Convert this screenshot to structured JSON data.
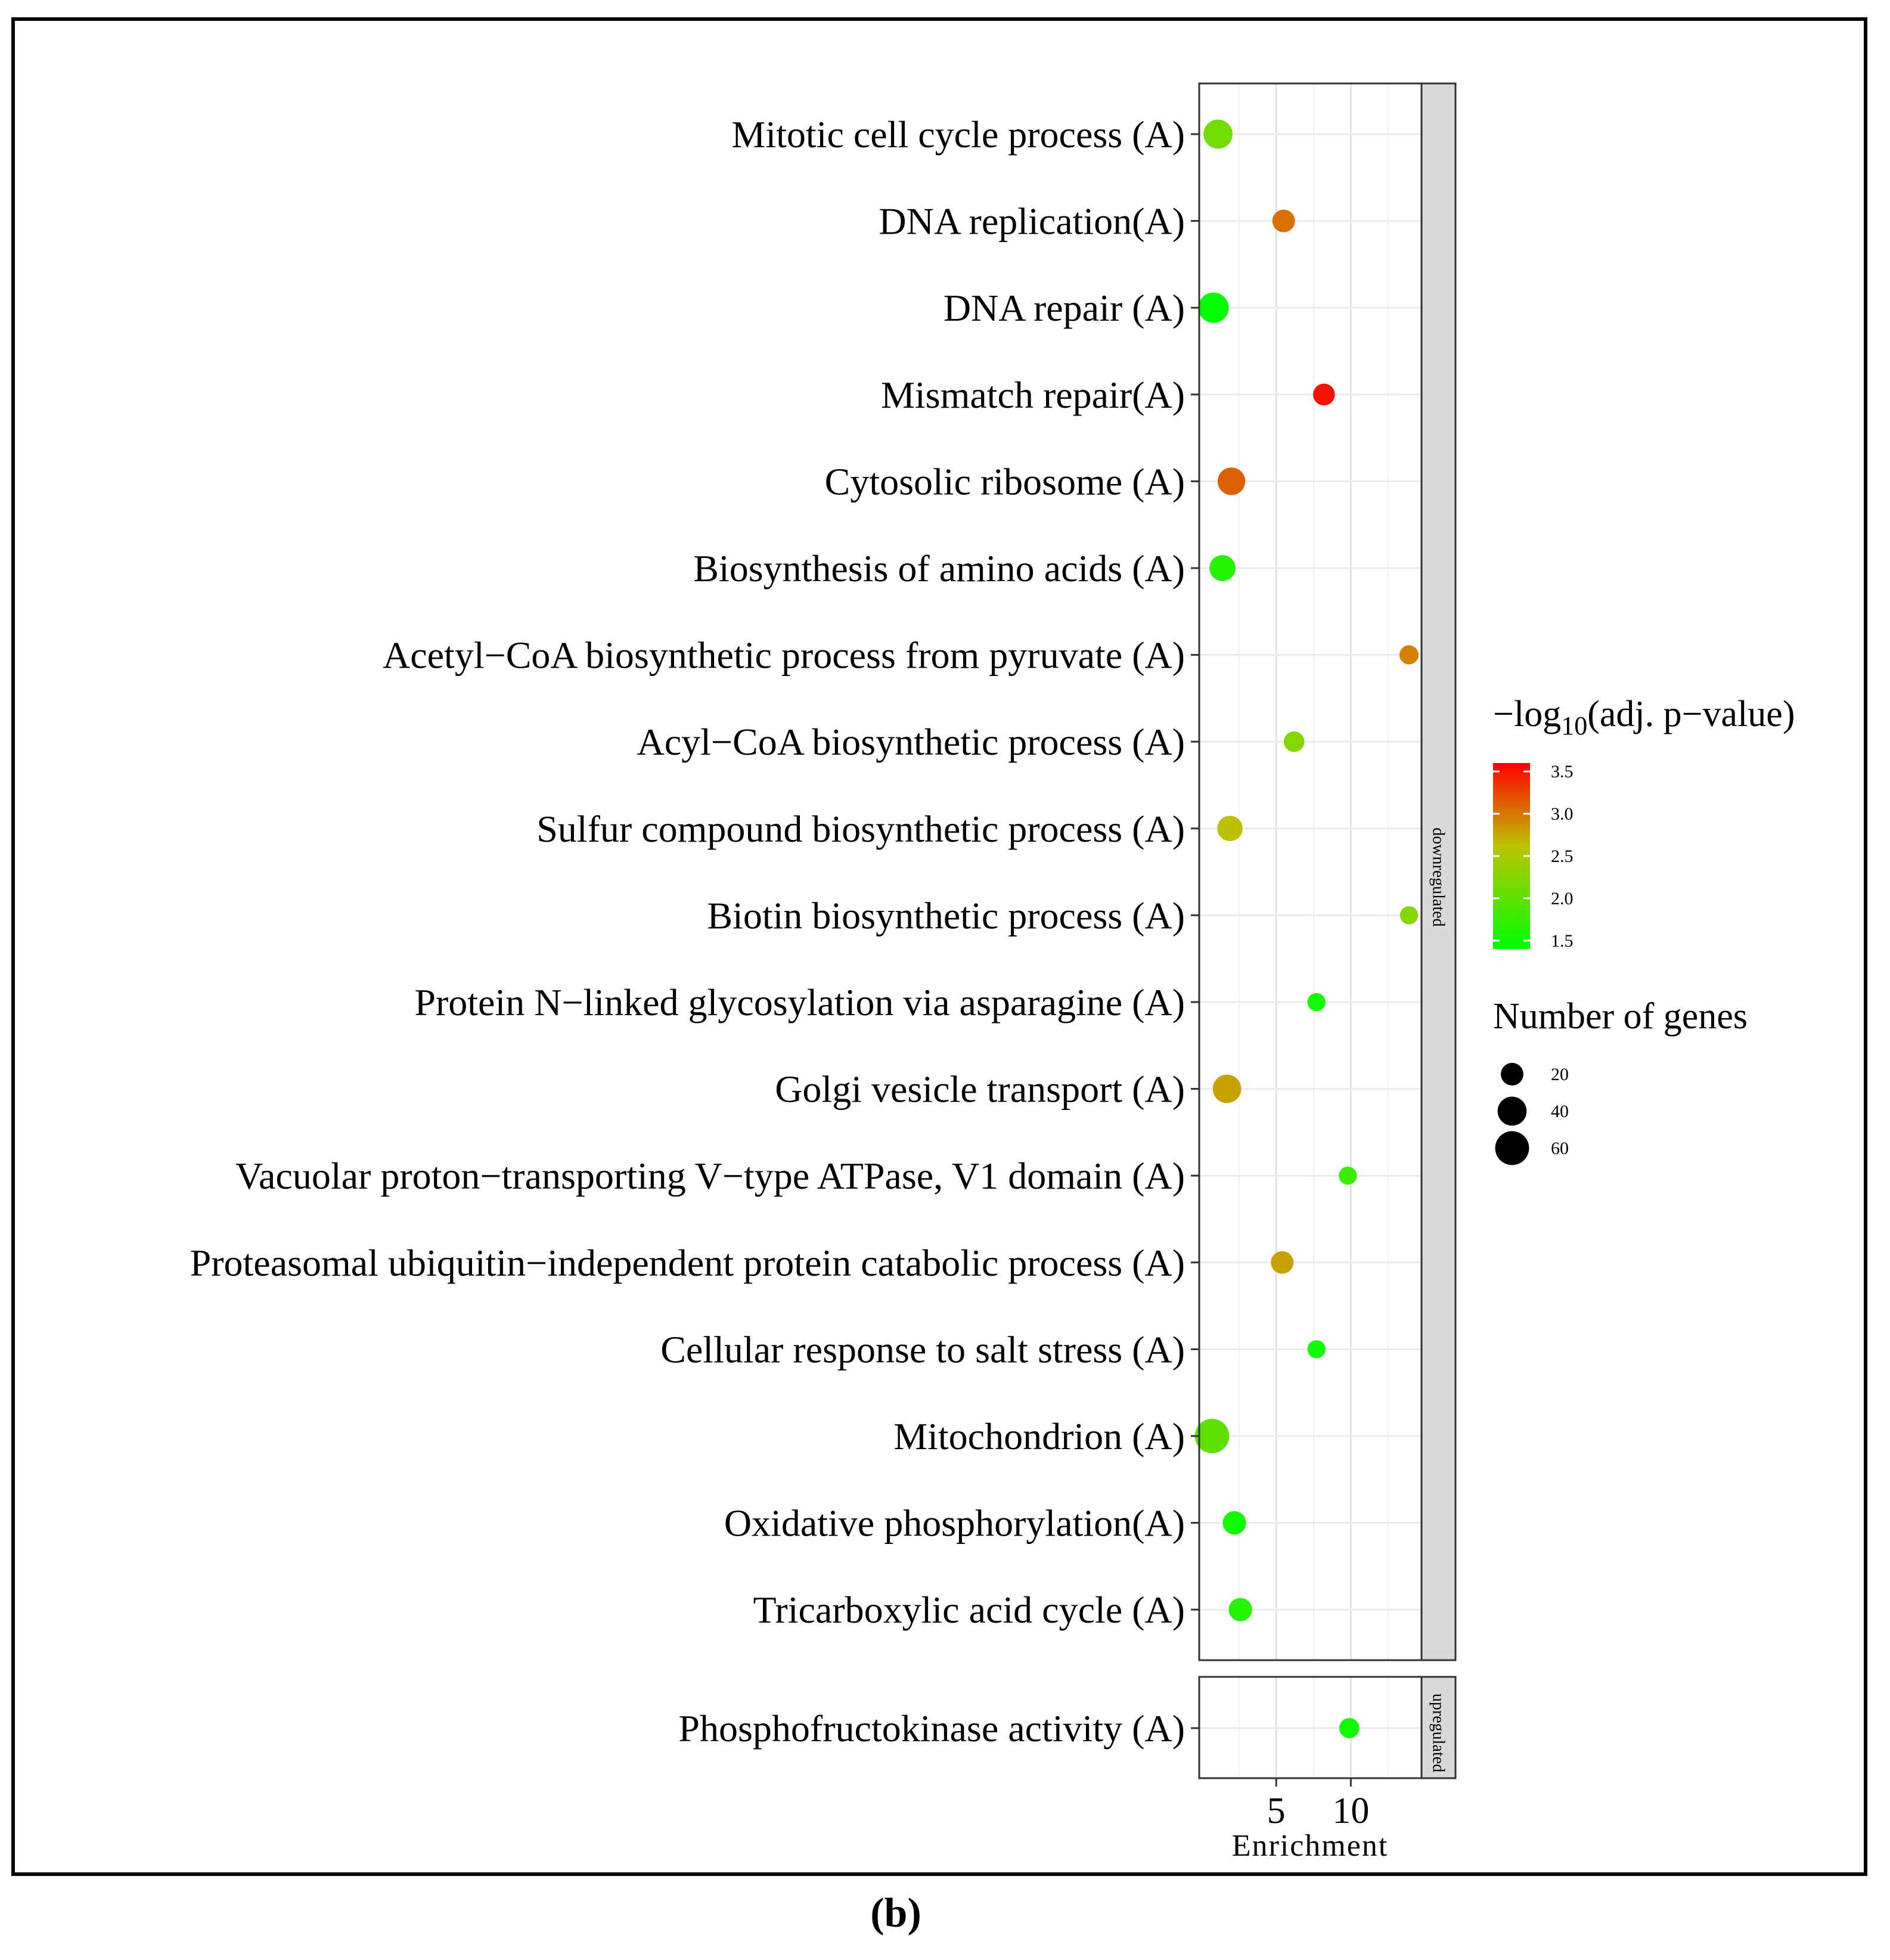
{
  "caption": "(b)",
  "chart_data": {
    "type": "scatter",
    "xlabel": "Enrichment",
    "ylabel": "",
    "x_ticks": [
      5,
      10
    ],
    "xlim": [
      0,
      14.5
    ],
    "grid": true,
    "facets": [
      {
        "label": "downregulated",
        "categories": [
          "Mitotic cell cycle process (A)",
          "DNA replication(A)",
          "DNA repair (A)",
          "Mismatch repair(A)",
          "Cytosolic ribosome (A)",
          "Biosynthesis of amino acids (A)",
          "Acetyl−CoA biosynthetic process from pyruvate (A)",
          "Acyl−CoA biosynthetic process (A)",
          "Sulfur compound biosynthetic process (A)",
          "Biotin biosynthetic process (A)",
          "Protein N−linked glycosylation via asparagine (A)",
          "Golgi vesicle transport (A)",
          "Vacuolar proton−transporting V−type ATPase, V1 domain (A)",
          "Proteasomal ubiquitin−independent protein catabolic process (A)",
          "Cellular response to salt stress (A)",
          "Mitochondrion (A)",
          "Oxidative phosphorylation(A)",
          "Tricarboxylic acid cycle (A)"
        ],
        "enrichment": [
          1.1,
          5.5,
          0.8,
          8.2,
          2.0,
          1.4,
          13.9,
          6.2,
          1.9,
          13.9,
          7.7,
          1.7,
          9.8,
          5.4,
          7.7,
          0.7,
          2.2,
          2.6
        ],
        "neg_log10_adj_p": [
          2.0,
          2.9,
          1.4,
          3.5,
          3.0,
          1.6,
          2.8,
          2.1,
          2.4,
          2.1,
          1.5,
          2.6,
          1.7,
          2.6,
          1.5,
          1.9,
          1.5,
          1.6
        ],
        "genes": [
          40,
          20,
          45,
          18,
          35,
          30,
          12,
          15,
          28,
          10,
          10,
          38,
          10,
          20,
          10,
          62,
          22,
          22
        ]
      },
      {
        "label": "upregulated",
        "categories": [
          "Phosphofructokinase activity (A)"
        ],
        "enrichment": [
          9.9
        ],
        "neg_log10_adj_p": [
          1.5
        ],
        "genes": [
          14
        ]
      }
    ],
    "color_legend": {
      "title_prefix": "−log",
      "title_sub": "10",
      "title_suffix": "(adj. p−value)",
      "ticks": [
        "3.5",
        "3.0",
        "2.5",
        "2.0",
        "1.5"
      ],
      "min": 1.4,
      "max": 3.6,
      "color_low": "#00ff00",
      "color_mid": "#bcc400",
      "color_high": "#ff0000"
    },
    "size_legend": {
      "title": "Number of genes",
      "values": [
        20,
        40,
        60
      ],
      "labels": [
        "20",
        "40",
        "60"
      ]
    }
  }
}
